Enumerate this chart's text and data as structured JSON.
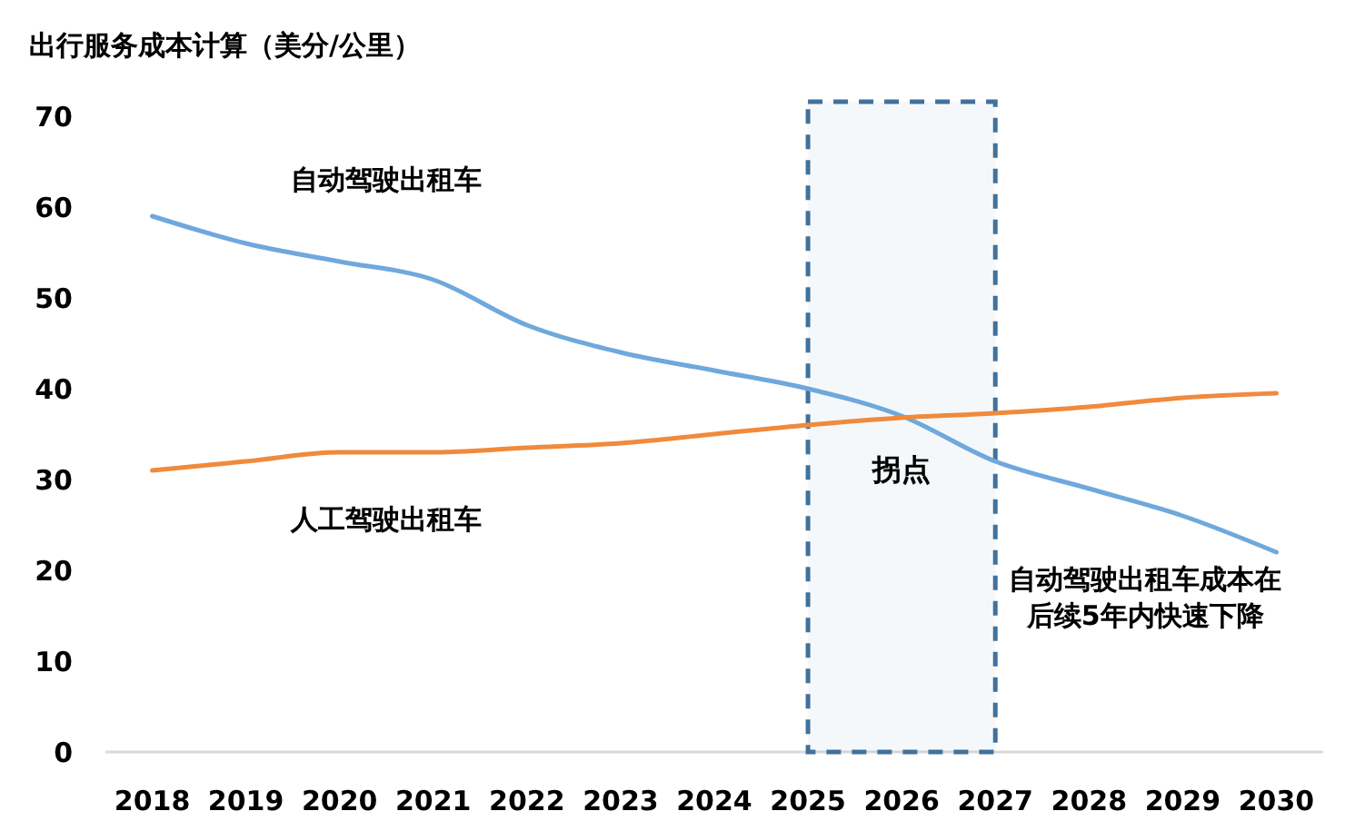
{
  "chart_data": {
    "type": "line",
    "title": "出行服务成本计算（美分/公里）",
    "categories": [
      "2018",
      "2019",
      "2020",
      "2021",
      "2022",
      "2023",
      "2024",
      "2025",
      "2026",
      "2027",
      "2028",
      "2029",
      "2030"
    ],
    "series": [
      {
        "name": "自动驾驶出租车",
        "color": "#6fa8dc",
        "values": [
          59,
          56,
          54,
          52,
          47,
          44,
          42,
          40,
          37,
          32,
          29,
          26,
          22
        ]
      },
      {
        "name": "人工驾驶出租车",
        "color": "#f08a3c",
        "values": [
          31,
          32,
          33,
          33,
          33.5,
          34,
          35,
          36,
          36.8,
          37.3,
          38,
          39,
          39.5
        ]
      }
    ],
    "ylim": [
      0,
      70
    ],
    "yticks": [
      0,
      10,
      20,
      30,
      40,
      50,
      60,
      70
    ],
    "grid": false,
    "legend": false,
    "marker": "none",
    "line_style": "solid",
    "bands": [
      {
        "axis": "x",
        "from": "2025",
        "to": "2027",
        "label": "拐点",
        "color": "#41719c"
      }
    ],
    "annotations": [
      "自动驾驶出租车成本在后续5年内快速下降"
    ]
  }
}
